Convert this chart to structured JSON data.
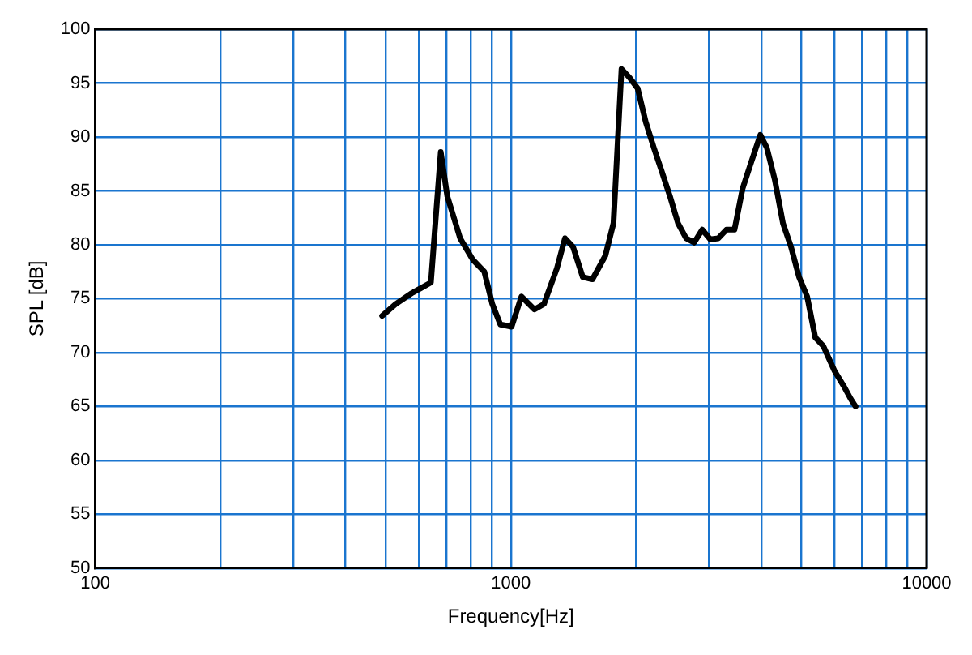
{
  "chart_data": {
    "type": "line",
    "xlabel": "Frequency[Hz]",
    "ylabel": "SPL [dB]",
    "log": "x",
    "grid": true,
    "marker": "none",
    "line_style": "solid",
    "xlim": [
      100,
      10000
    ],
    "ylim": [
      50,
      100
    ],
    "xticks": [
      100,
      {
        "value": 200,
        "label": null
      },
      {
        "value": 300,
        "label": null
      },
      {
        "value": 400,
        "label": null
      },
      {
        "value": 500,
        "label": null
      },
      {
        "value": 600,
        "label": null
      },
      {
        "value": 700,
        "label": null
      },
      {
        "value": 800,
        "label": null
      },
      {
        "value": 900,
        "label": null
      },
      1000,
      {
        "value": 2000,
        "label": null
      },
      {
        "value": 3000,
        "label": null
      },
      {
        "value": 4000,
        "label": null
      },
      {
        "value": 5000,
        "label": null
      },
      {
        "value": 6000,
        "label": null
      },
      {
        "value": 7000,
        "label": null
      },
      {
        "value": 8000,
        "label": null
      },
      {
        "value": 9000,
        "label": null
      },
      10000
    ],
    "yticks": [
      50,
      55,
      60,
      65,
      70,
      75,
      80,
      85,
      90,
      95,
      100
    ],
    "series": [
      {
        "color": "#000000",
        "x": [
          490,
          528,
          577,
          609,
          642,
          678,
          703,
          755,
          810,
          863,
          902,
          943,
          1004,
          1060,
          1139,
          1201,
          1290,
          1349,
          1411,
          1489,
          1571,
          1688,
          1765,
          1845,
          1930,
          2018,
          2110,
          2207,
          2307,
          2413,
          2523,
          2639,
          2759,
          2885,
          3017,
          3155,
          3299,
          3450,
          3608,
          3773,
          3981,
          4127,
          4315,
          4512,
          4719,
          4934,
          5160,
          5396,
          5643,
          6004,
          6338,
          6569,
          6747
        ],
        "values": [
          73.4,
          74.5,
          75.5,
          76,
          76.5,
          88.6,
          84.5,
          80.6,
          78.6,
          77.5,
          74.5,
          72.6,
          72.4,
          75.2,
          74,
          74.5,
          77.8,
          80.6,
          79.8,
          77,
          76.8,
          79,
          82,
          96.3,
          95.5,
          94.5,
          91.4,
          89,
          86.8,
          84.5,
          82,
          80.6,
          80.2,
          81.4,
          80.5,
          80.6,
          81.4,
          81.4,
          85.2,
          87.5,
          90.2,
          89,
          86,
          82,
          79.8,
          77,
          75.2,
          71.4,
          70.6,
          68.3,
          66.8,
          65.7,
          65
        ]
      }
    ]
  }
}
